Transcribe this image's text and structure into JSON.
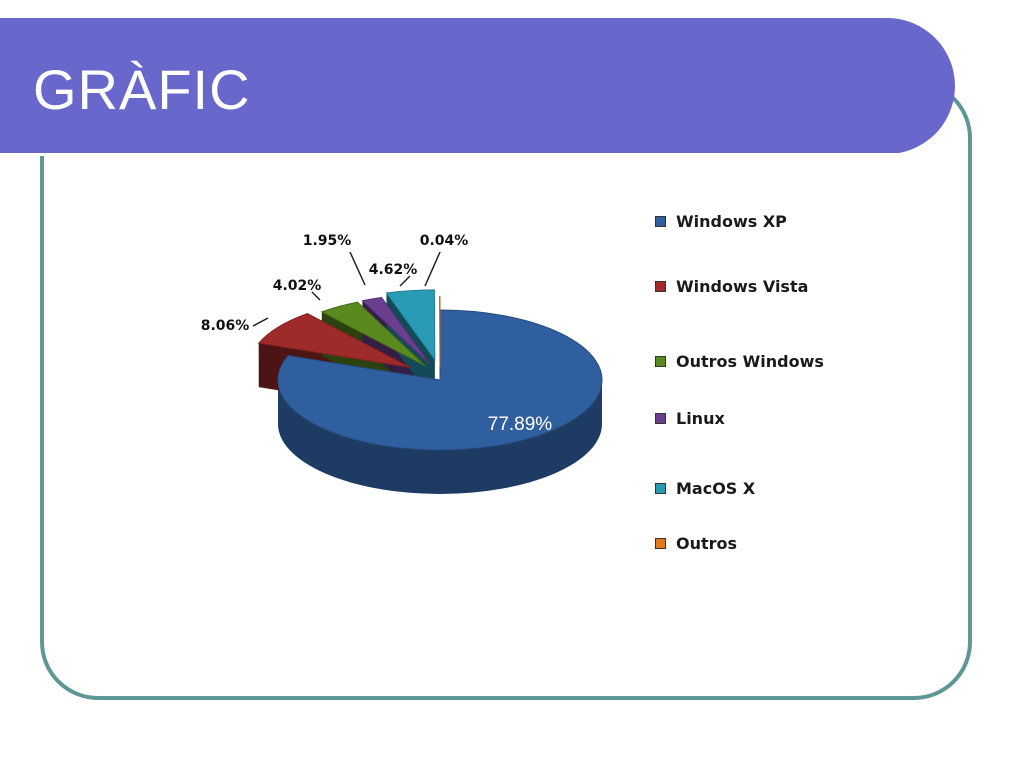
{
  "slide": {
    "title": "GRÀFIC"
  },
  "chart_data": {
    "type": "pie",
    "title": "",
    "legend_position": "right",
    "slices": [
      {
        "name": "Windows XP",
        "value": 77.89,
        "label": "77.89%",
        "color": "#2f5f9f"
      },
      {
        "name": "Windows Vista",
        "value": 8.06,
        "label": "8.06%",
        "color": "#9e2a2a"
      },
      {
        "name": "Outros Windows",
        "value": 4.02,
        "label": "4.02%",
        "color": "#5a8a1f"
      },
      {
        "name": "Linux",
        "value": 1.95,
        "label": "1.95%",
        "color": "#6a3f8f"
      },
      {
        "name": "MacOS X",
        "value": 4.62,
        "label": "4.62%",
        "color": "#2a9bb5"
      },
      {
        "name": "Outros",
        "value": 0.04,
        "label": "0.04%",
        "color": "#e07a1a"
      }
    ]
  }
}
